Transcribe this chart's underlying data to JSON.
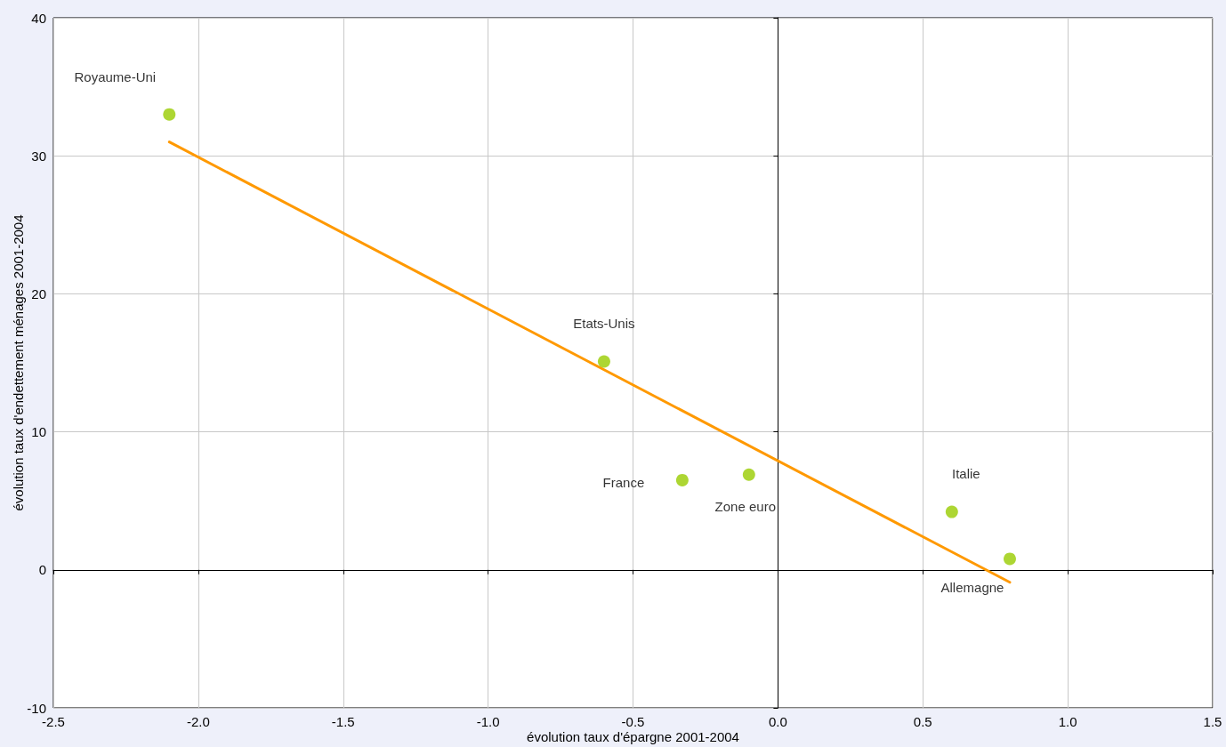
{
  "chart_data": {
    "type": "scatter",
    "xlabel": "évolution taux d'épargne 2001-2004",
    "ylabel": "évolution taux d'endettement ménages 2001-2004",
    "x": [
      -2.1,
      -0.6,
      -0.33,
      -0.1,
      0.6,
      0.8
    ],
    "series": [
      {
        "color": "#99cc00",
        "marker": "circle",
        "values": [
          33.0,
          15.1,
          6.5,
          6.9,
          4.2,
          0.8
        ]
      },
      {
        "type": "line",
        "color": "#ff9900",
        "x": [
          -2.1,
          0.8
        ],
        "values": [
          31.0,
          -0.9
        ]
      }
    ],
    "annotations": [
      {
        "text": "Royaume-Uni",
        "x": -2.1,
        "y": 33.0
      },
      {
        "text": "Etats-Unis",
        "x": -0.6,
        "y": 15.1
      },
      {
        "text": "France",
        "x": -0.33,
        "y": 6.5
      },
      {
        "text": "Zone euro",
        "x": -0.1,
        "y": 6.9
      },
      {
        "text": "Italie",
        "x": 0.6,
        "y": 4.2
      },
      {
        "text": "Allemagne",
        "x": 0.8,
        "y": 0.8
      }
    ],
    "xlim": [
      -2.5,
      1.5
    ],
    "xticks": [
      -2.5,
      {
        "value": -2.0,
        "label": "-2.0"
      },
      {
        "value": -1.5,
        "label": "-1.5"
      },
      {
        "value": -1.0,
        "label": "-1.0"
      },
      {
        "value": -0.5,
        "label": "-0.5"
      },
      {
        "value": 0,
        "label": "0.0"
      },
      {
        "value": 0.5,
        "label": "0.5"
      },
      {
        "value": 1.0,
        "label": "1.0"
      },
      {
        "value": 1.5,
        "label": "1.5"
      }
    ],
    "ylim": [
      -10,
      40
    ],
    "yticks": [
      -10,
      0,
      10,
      20,
      30,
      40
    ],
    "grid": true,
    "line_style": "solid"
  }
}
